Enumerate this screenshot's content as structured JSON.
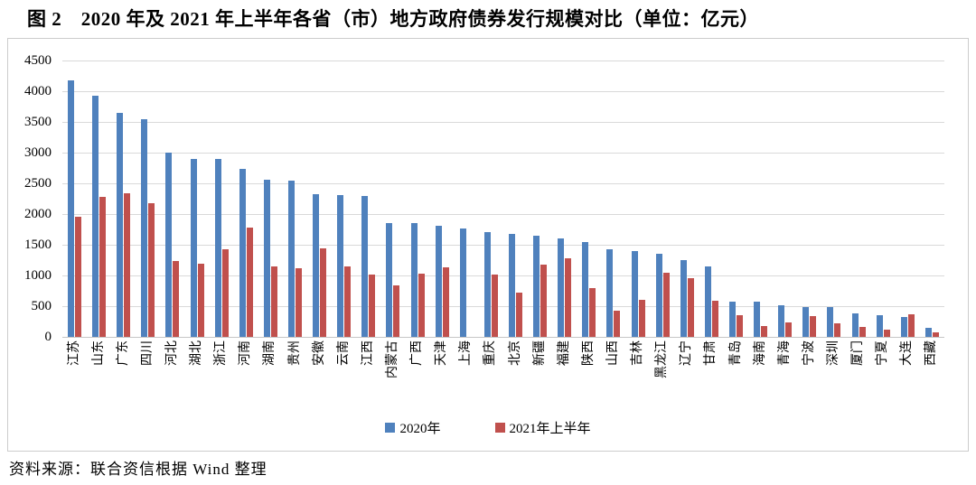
{
  "page": {
    "title": "图 2　2020 年及 2021 年上半年各省（市）地方政府债券发行规模对比（单位：亿元）",
    "source": "资料来源：联合资信根据 Wind 整理"
  },
  "chart_data": {
    "type": "bar",
    "title": "图 2　2020 年及 2021 年上半年各省（市）地方政府债券发行规模对比（单位：亿元）",
    "unit": "亿元",
    "categories": [
      "江苏",
      "山东",
      "广东",
      "四川",
      "河北",
      "湖北",
      "浙江",
      "河南",
      "湖南",
      "贵州",
      "安徽",
      "云南",
      "江西",
      "内蒙古",
      "广西",
      "天津",
      "上海",
      "重庆",
      "北京",
      "新疆",
      "福建",
      "陕西",
      "山西",
      "吉林",
      "黑龙江",
      "辽宁",
      "甘肃",
      "青岛",
      "海南",
      "青海",
      "宁波",
      "深圳",
      "厦门",
      "宁夏",
      "大连",
      "西藏"
    ],
    "series": [
      {
        "name": "2020年",
        "color": "#4F81BD",
        "values": [
          4180,
          3930,
          3640,
          3540,
          3000,
          2900,
          2890,
          2730,
          2560,
          2540,
          2330,
          2310,
          2290,
          1860,
          1860,
          1810,
          1760,
          1710,
          1680,
          1650,
          1600,
          1550,
          1430,
          1400,
          1360,
          1250,
          1140,
          580,
          580,
          510,
          490,
          490,
          380,
          350,
          330,
          150
        ]
      },
      {
        "name": "2021年上半年",
        "color": "#C0504D",
        "values": [
          1950,
          2280,
          2340,
          2170,
          1240,
          1190,
          1430,
          1780,
          1150,
          1120,
          1440,
          1150,
          1010,
          840,
          1030,
          1130,
          0,
          1020,
          720,
          1180,
          1280,
          790,
          430,
          610,
          1050,
          950,
          590,
          350,
          180,
          240,
          340,
          220,
          160,
          120,
          370,
          80
        ]
      }
    ],
    "ylim": [
      0,
      4500
    ],
    "yticks": [
      0,
      500,
      1000,
      1500,
      2000,
      2500,
      3000,
      3500,
      4000,
      4500
    ],
    "ytick_step": 500,
    "grid": true,
    "legend_position": "bottom",
    "x_label_rotation": -90
  }
}
